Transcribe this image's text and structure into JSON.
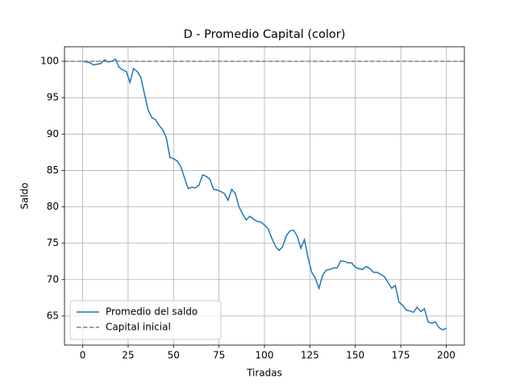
{
  "chart_data": {
    "type": "line",
    "title": "D - Promedio Capital (color)",
    "xlabel": "Tiradas",
    "ylabel": "Saldo",
    "x": [
      0,
      2,
      4,
      6,
      8,
      10,
      12,
      14,
      16,
      18,
      20,
      22,
      24,
      26,
      28,
      30,
      32,
      34,
      36,
      38,
      40,
      42,
      44,
      46,
      48,
      50,
      52,
      54,
      56,
      58,
      60,
      62,
      64,
      66,
      68,
      70,
      72,
      74,
      76,
      78,
      80,
      82,
      84,
      86,
      88,
      90,
      92,
      94,
      96,
      98,
      100,
      102,
      104,
      106,
      108,
      110,
      112,
      114,
      116,
      118,
      120,
      122,
      124,
      126,
      128,
      130,
      132,
      134,
      136,
      138,
      140,
      142,
      144,
      146,
      148,
      150,
      152,
      154,
      156,
      158,
      160,
      162,
      164,
      166,
      168,
      170,
      172,
      174,
      176,
      178,
      180,
      182,
      184,
      186,
      188,
      190,
      192,
      194,
      196,
      198,
      200
    ],
    "series": [
      {
        "name": "Promedio del saldo",
        "color": "#1f77b4",
        "values": [
          100.0,
          99.9,
          99.8,
          99.5,
          99.6,
          99.7,
          100.2,
          99.9,
          100.0,
          100.3,
          99.2,
          98.8,
          98.6,
          97.1,
          99.0,
          98.6,
          97.8,
          95.5,
          93.3,
          92.3,
          92.0,
          91.2,
          90.6,
          89.5,
          86.8,
          86.6,
          86.3,
          85.5,
          84.0,
          82.5,
          82.7,
          82.6,
          83.0,
          84.4,
          84.2,
          83.8,
          82.4,
          82.3,
          82.1,
          81.8,
          80.9,
          82.4,
          81.8,
          80.0,
          79.0,
          78.2,
          78.7,
          78.3,
          78.0,
          77.9,
          77.5,
          77.0,
          75.7,
          74.6,
          74.0,
          74.5,
          76.0,
          76.7,
          76.8,
          76.0,
          74.3,
          75.5,
          73.0,
          71.0,
          70.2,
          68.8,
          70.6,
          71.3,
          71.4,
          71.6,
          71.6,
          72.6,
          72.5,
          72.3,
          72.3,
          71.7,
          71.5,
          71.4,
          71.8,
          71.5,
          71.0,
          71.0,
          70.7,
          70.4,
          69.6,
          68.8,
          69.2,
          66.9,
          66.5,
          65.8,
          65.7,
          65.5,
          66.2,
          65.6,
          66.0,
          64.2,
          64.0,
          64.2,
          63.4,
          63.1,
          63.3
        ]
      }
    ],
    "hlines": [
      {
        "name": "Capital inicial",
        "color": "#808080",
        "value": 100,
        "style": "dashed"
      }
    ],
    "xlim": [
      -10,
      210
    ],
    "xticks": [
      0,
      25,
      50,
      75,
      100,
      125,
      150,
      175,
      200
    ],
    "ylim": [
      61,
      102
    ],
    "yticks": [
      65,
      70,
      75,
      80,
      85,
      90,
      95,
      100
    ],
    "grid": true,
    "legend": "lower left"
  }
}
